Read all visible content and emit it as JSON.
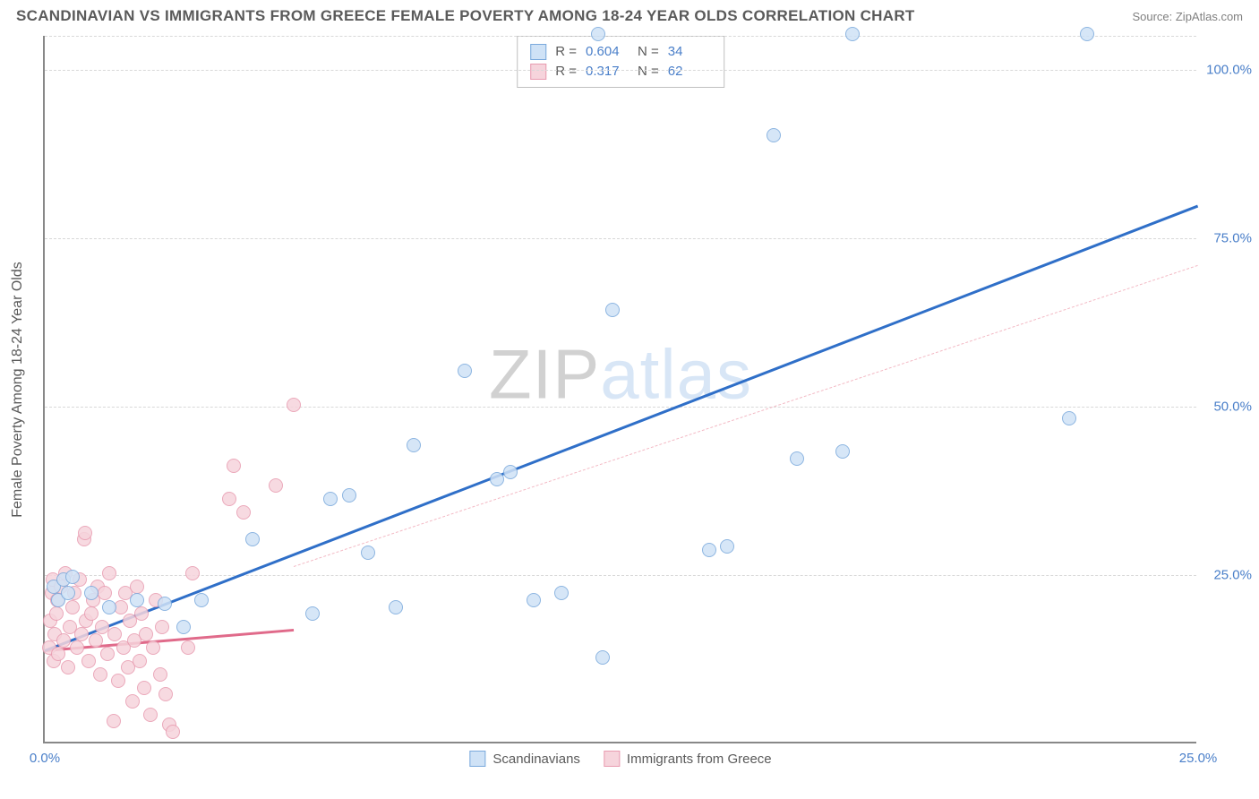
{
  "header": {
    "title": "SCANDINAVIAN VS IMMIGRANTS FROM GREECE FEMALE POVERTY AMONG 18-24 YEAR OLDS CORRELATION CHART",
    "source": "Source: ZipAtlas.com"
  },
  "watermark": {
    "part1": "ZIP",
    "part2": "atlas"
  },
  "chart": {
    "type": "scatter",
    "y_axis_title": "Female Poverty Among 18-24 Year Olds",
    "xlim": [
      0,
      25
    ],
    "ylim": [
      0,
      105
    ],
    "x_ticks": [
      0,
      25
    ],
    "x_tick_labels": [
      "0.0%",
      "25.0%"
    ],
    "y_ticks": [
      25,
      50,
      75,
      100
    ],
    "y_tick_labels": [
      "25.0%",
      "50.0%",
      "75.0%",
      "100.0%"
    ],
    "grid_color": "#d8d8d8",
    "axis_color": "#888888",
    "tick_label_color": "#4a7fc9",
    "background_color": "#ffffff",
    "marker_radius": 8,
    "marker_stroke_width": 1.5,
    "series": [
      {
        "id": "scandinavians",
        "label": "Scandinavians",
        "fill": "#cfe2f6",
        "stroke": "#7aa9dc",
        "trend": {
          "style": "solid",
          "color": "#2f6fc8",
          "y_at_xmin": 14,
          "y_at_xmax": 80,
          "x_extent": [
            0,
            25
          ]
        },
        "trend_dash": {
          "style": "dash",
          "color": "#f3b9c4",
          "y_at_xmin": 14,
          "y_at_xmax": 71,
          "x_extent": [
            5.4,
            25
          ]
        },
        "points": [
          [
            0.2,
            23
          ],
          [
            0.3,
            21
          ],
          [
            0.4,
            24
          ],
          [
            0.5,
            22
          ],
          [
            0.6,
            24.5
          ],
          [
            1.0,
            22
          ],
          [
            1.4,
            20
          ],
          [
            2.0,
            21
          ],
          [
            2.6,
            20.5
          ],
          [
            3.0,
            17
          ],
          [
            3.4,
            21
          ],
          [
            4.5,
            30
          ],
          [
            5.8,
            19
          ],
          [
            6.2,
            36
          ],
          [
            6.6,
            36.5
          ],
          [
            7.0,
            28
          ],
          [
            7.6,
            20
          ],
          [
            8.0,
            44
          ],
          [
            9.1,
            55
          ],
          [
            9.8,
            39
          ],
          [
            10.1,
            40
          ],
          [
            10.6,
            21
          ],
          [
            11.2,
            22
          ],
          [
            12.1,
            12.5
          ],
          [
            12.3,
            64
          ],
          [
            12.0,
            105
          ],
          [
            14.4,
            28.5
          ],
          [
            14.8,
            29
          ],
          [
            15.8,
            90
          ],
          [
            16.3,
            42
          ],
          [
            17.3,
            43
          ],
          [
            17.5,
            105
          ],
          [
            22.2,
            48
          ],
          [
            22.6,
            105
          ]
        ]
      },
      {
        "id": "greece",
        "label": "Immigrants from Greece",
        "fill": "#f6d4dc",
        "stroke": "#e89bb0",
        "trend": {
          "style": "solid",
          "color": "#e06a8a",
          "y_at_xmin": 14,
          "y_at_xmax": 28.2,
          "x_extent": [
            0,
            5.4
          ]
        },
        "points": [
          [
            0.1,
            14
          ],
          [
            0.12,
            18
          ],
          [
            0.15,
            22
          ],
          [
            0.18,
            24
          ],
          [
            0.2,
            12
          ],
          [
            0.22,
            16
          ],
          [
            0.25,
            19
          ],
          [
            0.28,
            21
          ],
          [
            0.3,
            13
          ],
          [
            0.35,
            23
          ],
          [
            0.4,
            15
          ],
          [
            0.45,
            25
          ],
          [
            0.5,
            11
          ],
          [
            0.55,
            17
          ],
          [
            0.6,
            20
          ],
          [
            0.65,
            22
          ],
          [
            0.7,
            14
          ],
          [
            0.75,
            24
          ],
          [
            0.8,
            16
          ],
          [
            0.85,
            30
          ],
          [
            0.88,
            31
          ],
          [
            0.9,
            18
          ],
          [
            0.95,
            12
          ],
          [
            1.0,
            19
          ],
          [
            1.05,
            21
          ],
          [
            1.1,
            15
          ],
          [
            1.15,
            23
          ],
          [
            1.2,
            10
          ],
          [
            1.25,
            17
          ],
          [
            1.3,
            22
          ],
          [
            1.35,
            13
          ],
          [
            1.4,
            25
          ],
          [
            1.5,
            3
          ],
          [
            1.52,
            16
          ],
          [
            1.6,
            9
          ],
          [
            1.65,
            20
          ],
          [
            1.7,
            14
          ],
          [
            1.75,
            22
          ],
          [
            1.8,
            11
          ],
          [
            1.85,
            18
          ],
          [
            1.9,
            6
          ],
          [
            1.95,
            15
          ],
          [
            2.0,
            23
          ],
          [
            2.05,
            12
          ],
          [
            2.1,
            19
          ],
          [
            2.15,
            8
          ],
          [
            2.2,
            16
          ],
          [
            2.3,
            4
          ],
          [
            2.35,
            14
          ],
          [
            2.4,
            21
          ],
          [
            2.5,
            10
          ],
          [
            2.55,
            17
          ],
          [
            2.62,
            7
          ],
          [
            2.7,
            2.5
          ],
          [
            2.78,
            1.5
          ],
          [
            3.1,
            14
          ],
          [
            3.2,
            25
          ],
          [
            4.0,
            36
          ],
          [
            4.1,
            41
          ],
          [
            4.3,
            34
          ],
          [
            5.0,
            38
          ],
          [
            5.4,
            50
          ]
        ]
      }
    ],
    "stats_legend": [
      {
        "series": "scandinavians",
        "r": "0.604",
        "n": "34"
      },
      {
        "series": "greece",
        "r": "0.317",
        "n": "62"
      }
    ],
    "stats_labels": {
      "r": "R =",
      "n": "N ="
    }
  }
}
